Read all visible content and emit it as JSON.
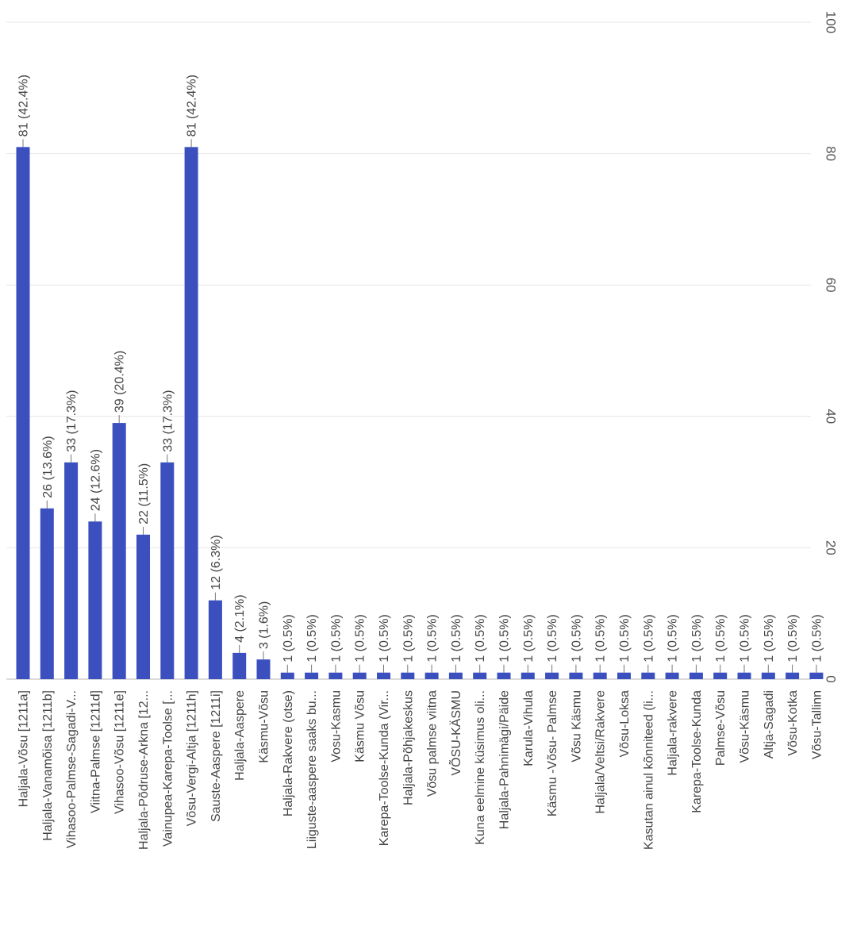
{
  "chart_data": {
    "type": "bar",
    "orientation": "rotated-90-clockwise",
    "color": "#3b4fbf",
    "ylim": [
      0,
      100
    ],
    "y_ticks": [
      "0",
      "20",
      "40",
      "60",
      "80",
      "100"
    ],
    "grid": true,
    "categories": [
      "Haljala-Võsu [1211a]",
      "Haljala-Vanamõisa [1211b]",
      "Vihasoo-Palmse-Sagadi-V...",
      "Viitna-Palmse [1211d]",
      "Vihasoo-Võsu [1211e]",
      "Haljala-Põdruse-Arkna [12...",
      "Vainupea-Karepa-Toolse [...",
      "Võsu-Vergi-Altja [1211h]",
      "Sauste-Aaspere [1211i]",
      "Haljala-Aaspere",
      "Käsmu-Võsu",
      "Haljala-Rakvere (otse)",
      "Liiguste-aaspere saaks bu...",
      "Vosu-Kasmu",
      "Käsmu Võsu",
      "Karepa-Toolse-Kunda (Vir...",
      "Haljala-Põhjakeskus",
      "Võsu palmse viitna",
      "VÕSU-KÄSMU",
      "Kuna eelmine küsimus oli...",
      "Haljala-Pahnimägi/Päide",
      "Karula-Vihula",
      "Käsmu -Võsu- Palmse",
      "Võsu Käsmu",
      "Haljala/Veltsi/Rakvere",
      "Võsu-Loksa",
      "Kasutan ainul kõnniteed (li...",
      "Haljala-rakvere",
      "Karepa-Toolse-Kunda",
      "Palmse-Võsu",
      "Võsu-Käsmu",
      "Altja-Sagadi",
      "Võsu-Kotka",
      "Võsu-Tallinn"
    ],
    "values": [
      81,
      26,
      33,
      24,
      39,
      22,
      33,
      81,
      12,
      4,
      3,
      1,
      1,
      1,
      1,
      1,
      1,
      1,
      1,
      1,
      1,
      1,
      1,
      1,
      1,
      1,
      1,
      1,
      1,
      1,
      1,
      1,
      1,
      1
    ],
    "labels": [
      "81 (42.4%)",
      "26 (13.6%)",
      "33 (17.3%)",
      "24 (12.6%)",
      "39 (20.4%)",
      "22 (11.5%)",
      "33 (17.3%)",
      "81 (42.4%)",
      "12 (6.3%)",
      "4 (2.1%)",
      "3 (1.6%)",
      "1 (0.5%)",
      "1 (0.5%)",
      "1 (0.5%)",
      "1 (0.5%)",
      "1 (0.5%)",
      "1 (0.5%)",
      "1 (0.5%)",
      "1 (0.5%)",
      "1 (0.5%)",
      "1 (0.5%)",
      "1 (0.5%)",
      "1 (0.5%)",
      "1 (0.5%)",
      "1 (0.5%)",
      "1 (0.5%)",
      "1 (0.5%)",
      "1 (0.5%)",
      "1 (0.5%)",
      "1 (0.5%)",
      "1 (0.5%)",
      "1 (0.5%)",
      "1 (0.5%)",
      "1 (0.5%)"
    ]
  }
}
